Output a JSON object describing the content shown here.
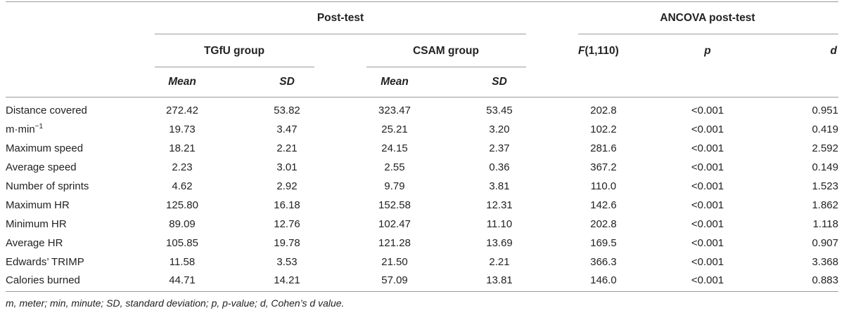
{
  "headers": {
    "post_test": "Post-test",
    "ancova": "ANCOVA post-test",
    "tgfu_group": "TGfU group",
    "csam_group": "CSAM group",
    "f_label_italic": "F",
    "f_label_rest": "(1,110)",
    "p_label": "p",
    "d_label": "d",
    "mean": "Mean",
    "sd": "SD"
  },
  "rows": [
    {
      "label": "Distance covered",
      "tgfu_mean": "272.42",
      "tgfu_sd": "53.82",
      "csam_mean": "323.47",
      "csam_sd": "53.45",
      "f": "202.8",
      "p": "<0.001",
      "d": "0.951"
    },
    {
      "label": "m·min",
      "label_sup": "−1",
      "tgfu_mean": "19.73",
      "tgfu_sd": "3.47",
      "csam_mean": "25.21",
      "csam_sd": "3.20",
      "f": "102.2",
      "p": "<0.001",
      "d": "0.419"
    },
    {
      "label": "Maximum speed",
      "tgfu_mean": "18.21",
      "tgfu_sd": "2.21",
      "csam_mean": "24.15",
      "csam_sd": "2.37",
      "f": "281.6",
      "p": "<0.001",
      "d": "2.592"
    },
    {
      "label": "Average speed",
      "tgfu_mean": "2.23",
      "tgfu_sd": "3.01",
      "csam_mean": "2.55",
      "csam_sd": "0.36",
      "f": "367.2",
      "p": "<0.001",
      "d": "0.149"
    },
    {
      "label": "Number of sprints",
      "tgfu_mean": "4.62",
      "tgfu_sd": "2.92",
      "csam_mean": "9.79",
      "csam_sd": "3.81",
      "f": "110.0",
      "p": "<0.001",
      "d": "1.523"
    },
    {
      "label": "Maximum HR",
      "tgfu_mean": "125.80",
      "tgfu_sd": "16.18",
      "csam_mean": "152.58",
      "csam_sd": "12.31",
      "f": "142.6",
      "p": "<0.001",
      "d": "1.862"
    },
    {
      "label": "Minimum HR",
      "tgfu_mean": "89.09",
      "tgfu_sd": "12.76",
      "csam_mean": "102.47",
      "csam_sd": "11.10",
      "f": "202.8",
      "p": "<0.001",
      "d": "1.118"
    },
    {
      "label": "Average HR",
      "tgfu_mean": "105.85",
      "tgfu_sd": "19.78",
      "csam_mean": "121.28",
      "csam_sd": "13.69",
      "f": "169.5",
      "p": "<0.001",
      "d": "0.907"
    },
    {
      "label": "Edwards’ TRIMP",
      "tgfu_mean": "11.58",
      "tgfu_sd": "3.53",
      "csam_mean": "21.50",
      "csam_sd": "2.21",
      "f": "366.3",
      "p": "<0.001",
      "d": "3.368"
    },
    {
      "label": "Calories burned",
      "tgfu_mean": "44.71",
      "tgfu_sd": "14.21",
      "csam_mean": "57.09",
      "csam_sd": "13.81",
      "f": "146.0",
      "p": "<0.001",
      "d": "0.883"
    }
  ],
  "footnote": "m, meter; min, minute; SD, standard deviation; p, p-value; d, Cohen’s d value."
}
